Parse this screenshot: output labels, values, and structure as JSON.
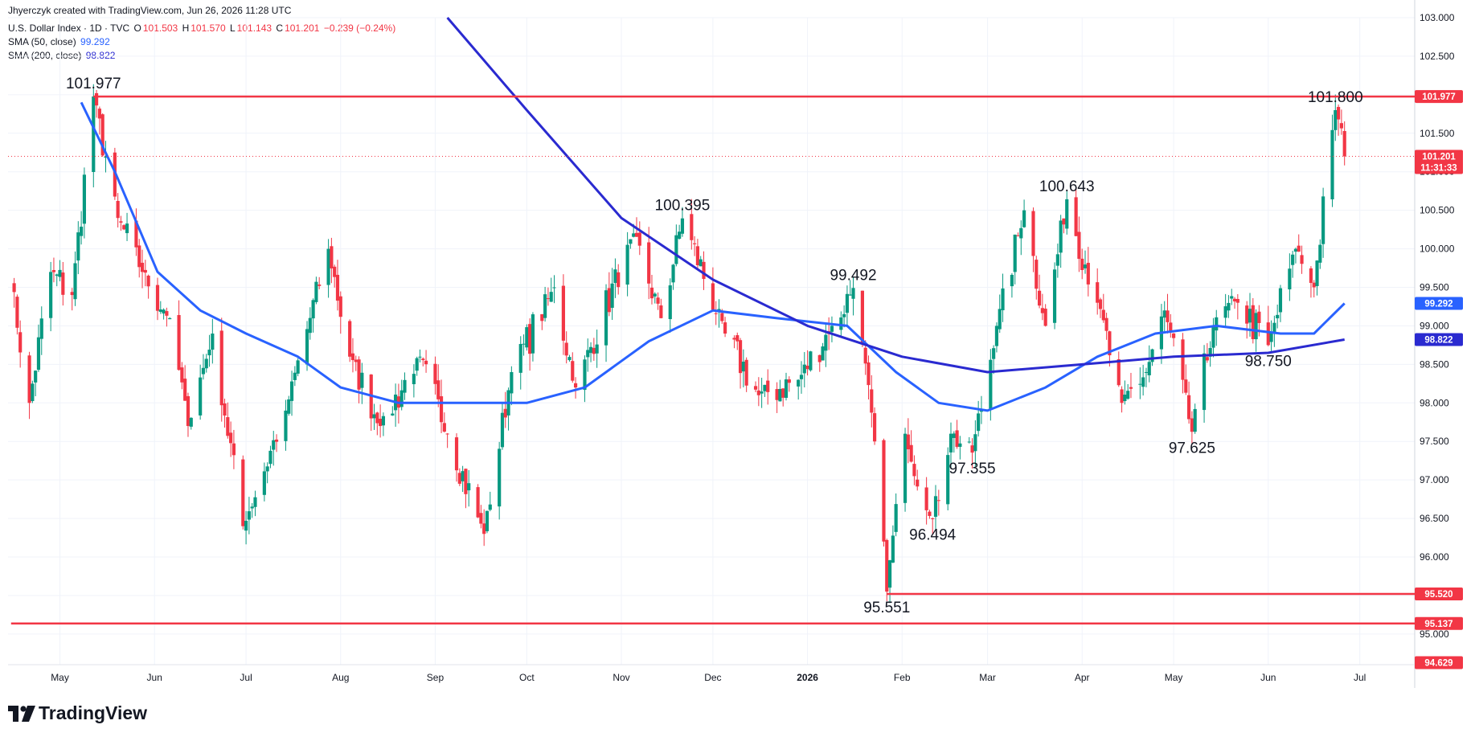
{
  "header": {
    "credit": "Jhyerczyk created with TradingView.com, Jun 26, 2026 11:28 UTC",
    "symbol": "U.S. Dollar Index · 1D · TVC",
    "o_label": "O",
    "o_value": "101.503",
    "h_label": "H",
    "h_value": "101.570",
    "l_label": "L",
    "l_value": "101.143",
    "c_label": "C",
    "c_value": "101.201",
    "change": "−0.239 (−0.24%)",
    "sma50_label": "SMA (50, close)",
    "sma50_value": "99.292",
    "sma200_label": "SMA (200, close)",
    "sma200_value": "98.822"
  },
  "brand": {
    "logo": "tradingview-logo-icon",
    "name": "TradingView"
  },
  "colors": {
    "up": "#089981",
    "down": "#f23645",
    "sma50": "#2962ff",
    "sma200": "#2a2ad0",
    "level": "#f23645",
    "grid": "#f0f3fa",
    "text": "#131722"
  },
  "chart_data": {
    "type": "candlestick",
    "title": "U.S. Dollar Index · 1D · TVC",
    "price_axis_ticks": [
      "103.000",
      "102.500",
      "102.000",
      "101.500",
      "101.000",
      "100.500",
      "100.000",
      "99.500",
      "99.000",
      "98.500",
      "98.000",
      "97.500",
      "97.000",
      "96.500",
      "96.000",
      "95.500",
      "95.000"
    ],
    "time_axis_labels": [
      "May",
      "Jun",
      "Jul",
      "Aug",
      "Sep",
      "Oct",
      "Nov",
      "Dec",
      "2026",
      "Feb",
      "Mar",
      "Apr",
      "May",
      "Jun",
      "Jul"
    ],
    "y_range": [
      94.3,
      103.0
    ],
    "grid": true,
    "horizontal_levels": [
      {
        "value": 101.977,
        "label": "101.977",
        "from": "2025-05-12"
      },
      {
        "value": 95.52,
        "label": "95.520",
        "from": "2026-01-27"
      },
      {
        "value": 95.137,
        "label": "95.137",
        "from": "2025-04-15"
      }
    ],
    "price_badges": [
      {
        "label": "101.977",
        "value": 101.977,
        "style": "red"
      },
      {
        "label": "101.201",
        "sublabel": "11:31:33",
        "value": 101.201,
        "style": "red"
      },
      {
        "label": "99.292",
        "value": 99.292,
        "style": "blue"
      },
      {
        "label": "98.822",
        "value": 98.822,
        "style": "navy"
      },
      {
        "label": "95.520",
        "value": 95.52,
        "style": "red"
      },
      {
        "label": "95.137",
        "value": 95.137,
        "style": "red"
      },
      {
        "label": "94.629",
        "value": 94.629,
        "style": "red"
      }
    ],
    "annotations": [
      {
        "text": "101.977",
        "date": "2025-05-12",
        "value": 101.977
      },
      {
        "text": "100.395",
        "date": "2025-11-21",
        "value": 100.395
      },
      {
        "text": "99.492",
        "date": "2026-01-16",
        "value": 99.492
      },
      {
        "text": "95.551",
        "date": "2026-01-27",
        "value": 95.551
      },
      {
        "text": "96.494",
        "date": "2026-02-11",
        "value": 96.494
      },
      {
        "text": "97.355",
        "date": "2026-02-24",
        "value": 97.355
      },
      {
        "text": "100.643",
        "date": "2026-03-27",
        "value": 100.643
      },
      {
        "text": "97.625",
        "date": "2026-05-07",
        "value": 97.625
      },
      {
        "text": "98.750",
        "date": "2026-06-01",
        "value": 98.75
      },
      {
        "text": "101.800",
        "date": "2026-06-23",
        "value": 101.8
      }
    ],
    "series_path": [
      {
        "date": "2025-04-15",
        "value": 99.6
      },
      {
        "date": "2025-04-21",
        "value": 98.0
      },
      {
        "date": "2025-04-28",
        "value": 99.7
      },
      {
        "date": "2025-05-05",
        "value": 99.4
      },
      {
        "date": "2025-05-12",
        "value": 101.977
      },
      {
        "date": "2025-05-20",
        "value": 100.4
      },
      {
        "date": "2025-05-28",
        "value": 99.7
      },
      {
        "date": "2025-06-06",
        "value": 99.1
      },
      {
        "date": "2025-06-12",
        "value": 97.7
      },
      {
        "date": "2025-06-20",
        "value": 98.9
      },
      {
        "date": "2025-06-30",
        "value": 96.4
      },
      {
        "date": "2025-07-14",
        "value": 97.9
      },
      {
        "date": "2025-07-28",
        "value": 100.0
      },
      {
        "date": "2025-08-04",
        "value": 98.6
      },
      {
        "date": "2025-08-14",
        "value": 97.7
      },
      {
        "date": "2025-08-27",
        "value": 98.6
      },
      {
        "date": "2025-09-05",
        "value": 97.6
      },
      {
        "date": "2025-09-17",
        "value": 96.3
      },
      {
        "date": "2025-09-26",
        "value": 98.4
      },
      {
        "date": "2025-10-10",
        "value": 99.5
      },
      {
        "date": "2025-10-17",
        "value": 98.2
      },
      {
        "date": "2025-11-05",
        "value": 100.2
      },
      {
        "date": "2025-11-14",
        "value": 99.1
      },
      {
        "date": "2025-11-21",
        "value": 100.395
      },
      {
        "date": "2025-12-05",
        "value": 98.9
      },
      {
        "date": "2025-12-16",
        "value": 98.1
      },
      {
        "date": "2025-12-29",
        "value": 98.3
      },
      {
        "date": "2026-01-09",
        "value": 99.0
      },
      {
        "date": "2026-01-16",
        "value": 99.492
      },
      {
        "date": "2026-01-23",
        "value": 97.5
      },
      {
        "date": "2026-01-27",
        "value": 95.551
      },
      {
        "date": "2026-02-02",
        "value": 97.6
      },
      {
        "date": "2026-02-11",
        "value": 96.494
      },
      {
        "date": "2026-02-17",
        "value": 97.6
      },
      {
        "date": "2026-02-24",
        "value": 97.355
      },
      {
        "date": "2026-03-04",
        "value": 99.0
      },
      {
        "date": "2026-03-13",
        "value": 100.5
      },
      {
        "date": "2026-03-20",
        "value": 99.0
      },
      {
        "date": "2026-03-27",
        "value": 100.643
      },
      {
        "date": "2026-04-06",
        "value": 99.3
      },
      {
        "date": "2026-04-14",
        "value": 98.0
      },
      {
        "date": "2026-04-22",
        "value": 98.4
      },
      {
        "date": "2026-04-28",
        "value": 99.2
      },
      {
        "date": "2026-05-07",
        "value": 97.625
      },
      {
        "date": "2026-05-14",
        "value": 99.0
      },
      {
        "date": "2026-05-22",
        "value": 99.3
      },
      {
        "date": "2026-06-01",
        "value": 98.75
      },
      {
        "date": "2026-06-10",
        "value": 100.0
      },
      {
        "date": "2026-06-16",
        "value": 99.5
      },
      {
        "date": "2026-06-23",
        "value": 101.8
      },
      {
        "date": "2026-06-26",
        "value": 101.201
      }
    ],
    "series": [
      {
        "name": "SMA (50, close)",
        "points": [
          {
            "date": "2025-05-08",
            "value": 101.9
          },
          {
            "date": "2025-05-19",
            "value": 101.0
          },
          {
            "date": "2025-06-02",
            "value": 99.7
          },
          {
            "date": "2025-06-16",
            "value": 99.2
          },
          {
            "date": "2025-07-01",
            "value": 98.9
          },
          {
            "date": "2025-07-18",
            "value": 98.6
          },
          {
            "date": "2025-08-01",
            "value": 98.2
          },
          {
            "date": "2025-08-20",
            "value": 98.0
          },
          {
            "date": "2025-09-10",
            "value": 98.0
          },
          {
            "date": "2025-10-01",
            "value": 98.0
          },
          {
            "date": "2025-10-20",
            "value": 98.2
          },
          {
            "date": "2025-11-10",
            "value": 98.8
          },
          {
            "date": "2025-12-01",
            "value": 99.2
          },
          {
            "date": "2025-12-22",
            "value": 99.1
          },
          {
            "date": "2026-01-14",
            "value": 99.0
          },
          {
            "date": "2026-01-30",
            "value": 98.4
          },
          {
            "date": "2026-02-13",
            "value": 98.0
          },
          {
            "date": "2026-03-01",
            "value": 97.9
          },
          {
            "date": "2026-03-20",
            "value": 98.2
          },
          {
            "date": "2026-04-06",
            "value": 98.6
          },
          {
            "date": "2026-04-25",
            "value": 98.9
          },
          {
            "date": "2026-05-15",
            "value": 99.0
          },
          {
            "date": "2026-06-05",
            "value": 98.9
          },
          {
            "date": "2026-06-16",
            "value": 98.9
          },
          {
            "date": "2026-06-26",
            "value": 99.292
          }
        ]
      },
      {
        "name": "SMA (200, close)",
        "points": [
          {
            "date": "2025-09-05",
            "value": 103.0
          },
          {
            "date": "2025-10-01",
            "value": 101.8
          },
          {
            "date": "2025-11-01",
            "value": 100.4
          },
          {
            "date": "2025-12-01",
            "value": 99.6
          },
          {
            "date": "2026-01-01",
            "value": 99.0
          },
          {
            "date": "2026-02-01",
            "value": 98.6
          },
          {
            "date": "2026-03-01",
            "value": 98.4
          },
          {
            "date": "2026-04-01",
            "value": 98.5
          },
          {
            "date": "2026-05-01",
            "value": 98.6
          },
          {
            "date": "2026-06-01",
            "value": 98.65
          },
          {
            "date": "2026-06-26",
            "value": 98.822
          }
        ]
      }
    ]
  }
}
